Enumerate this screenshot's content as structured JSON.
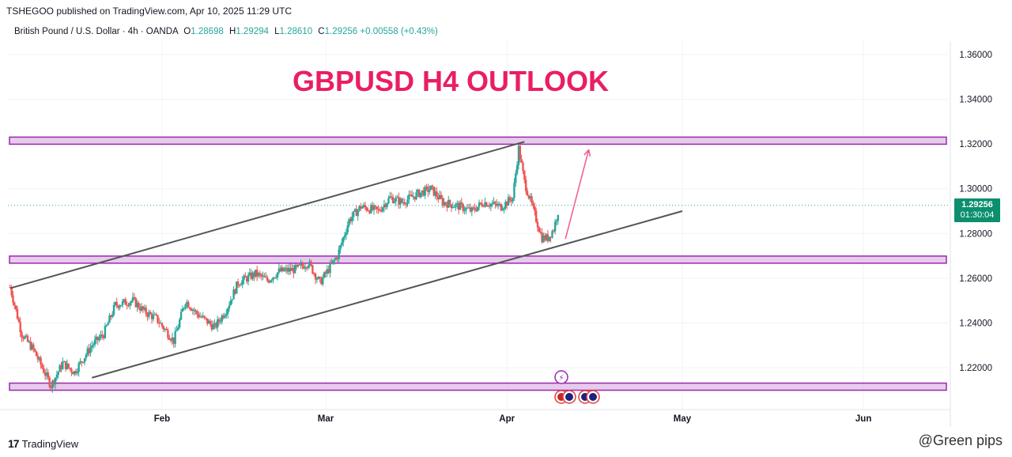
{
  "publisher_line": "TSHEGOO published on TradingView.com, Apr 10, 2025 11:29 UTC",
  "legend": {
    "symbol": "British Pound / U.S. Dollar · 4h · OANDA",
    "open_key": "O",
    "open": "1.28698",
    "high_key": "H",
    "high": "1.29294",
    "low_key": "L",
    "low": "1.28610",
    "close_key": "C",
    "close": "1.29256",
    "change": "+0.00558 (+0.43%)"
  },
  "chart_title": "GBPUSD H4 OUTLOOK",
  "price_tag": {
    "price": "1.29256",
    "countdown": "01:30:04"
  },
  "footer_brand": "TradingView",
  "watermark": "@Green pips",
  "colors": {
    "up": "#26a69a",
    "down": "#ef5350",
    "zone": "#9c27b0",
    "zone_fill": "#e1bee7",
    "title": "#e91e63",
    "channel": "#555555",
    "arrow": "#f06292"
  },
  "chart_data": {
    "type": "candlestick",
    "title": "GBPUSD H4 OUTLOOK",
    "y_axis": {
      "min": 1.2,
      "max": 1.37,
      "ticks": [
        "1.36000",
        "1.34000",
        "1.32000",
        "1.30000",
        "1.28000",
        "1.26000",
        "1.24000",
        "1.22000"
      ]
    },
    "x_axis": {
      "labels": [
        "Feb",
        "Mar",
        "Apr",
        "May",
        "Jun"
      ]
    },
    "price_path_approx": [
      [
        "2025-01-06",
        1.256
      ],
      [
        "2025-01-08",
        1.235
      ],
      [
        "2025-01-10",
        1.228
      ],
      [
        "2025-01-13",
        1.212
      ],
      [
        "2025-01-15",
        1.222
      ],
      [
        "2025-01-17",
        1.218
      ],
      [
        "2025-01-20",
        1.23
      ],
      [
        "2025-01-22",
        1.235
      ],
      [
        "2025-01-24",
        1.248
      ],
      [
        "2025-01-27",
        1.25
      ],
      [
        "2025-01-29",
        1.245
      ],
      [
        "2025-01-31",
        1.242
      ],
      [
        "2025-02-03",
        1.232
      ],
      [
        "2025-02-05",
        1.25
      ],
      [
        "2025-02-07",
        1.244
      ],
      [
        "2025-02-10",
        1.238
      ],
      [
        "2025-02-12",
        1.246
      ],
      [
        "2025-02-14",
        1.258
      ],
      [
        "2025-02-17",
        1.262
      ],
      [
        "2025-02-19",
        1.259
      ],
      [
        "2025-02-21",
        1.263
      ],
      [
        "2025-02-24",
        1.264
      ],
      [
        "2025-02-26",
        1.267
      ],
      [
        "2025-02-28",
        1.258
      ],
      [
        "2025-03-03",
        1.27
      ],
      [
        "2025-03-05",
        1.286
      ],
      [
        "2025-03-07",
        1.292
      ],
      [
        "2025-03-10",
        1.29
      ],
      [
        "2025-03-12",
        1.296
      ],
      [
        "2025-03-14",
        1.294
      ],
      [
        "2025-03-17",
        1.298
      ],
      [
        "2025-03-19",
        1.3
      ],
      [
        "2025-03-21",
        1.294
      ],
      [
        "2025-03-24",
        1.292
      ],
      [
        "2025-03-26",
        1.29
      ],
      [
        "2025-03-28",
        1.294
      ],
      [
        "2025-03-31",
        1.292
      ],
      [
        "2025-04-02",
        1.296
      ],
      [
        "2025-04-03",
        1.318
      ],
      [
        "2025-04-04",
        1.303
      ],
      [
        "2025-04-07",
        1.278
      ],
      [
        "2025-04-08",
        1.278
      ],
      [
        "2025-04-09",
        1.282
      ],
      [
        "2025-04-10",
        1.2926
      ]
    ],
    "horizontal_zones": [
      1.3215,
      1.2683,
      1.2115
    ],
    "channel_lines": [
      {
        "from": [
          "2025-01-06",
          1.2555
        ],
        "to": [
          "2025-04-04",
          1.321
        ]
      },
      {
        "from": [
          "2025-01-20",
          1.2155
        ],
        "to": [
          "2025-05-01",
          1.29
        ]
      }
    ],
    "projection_arrow": {
      "from": [
        "2025-04-11",
        1.2775
      ],
      "to": [
        "2025-04-15",
        1.3175
      ]
    },
    "last_price": 1.29256
  }
}
